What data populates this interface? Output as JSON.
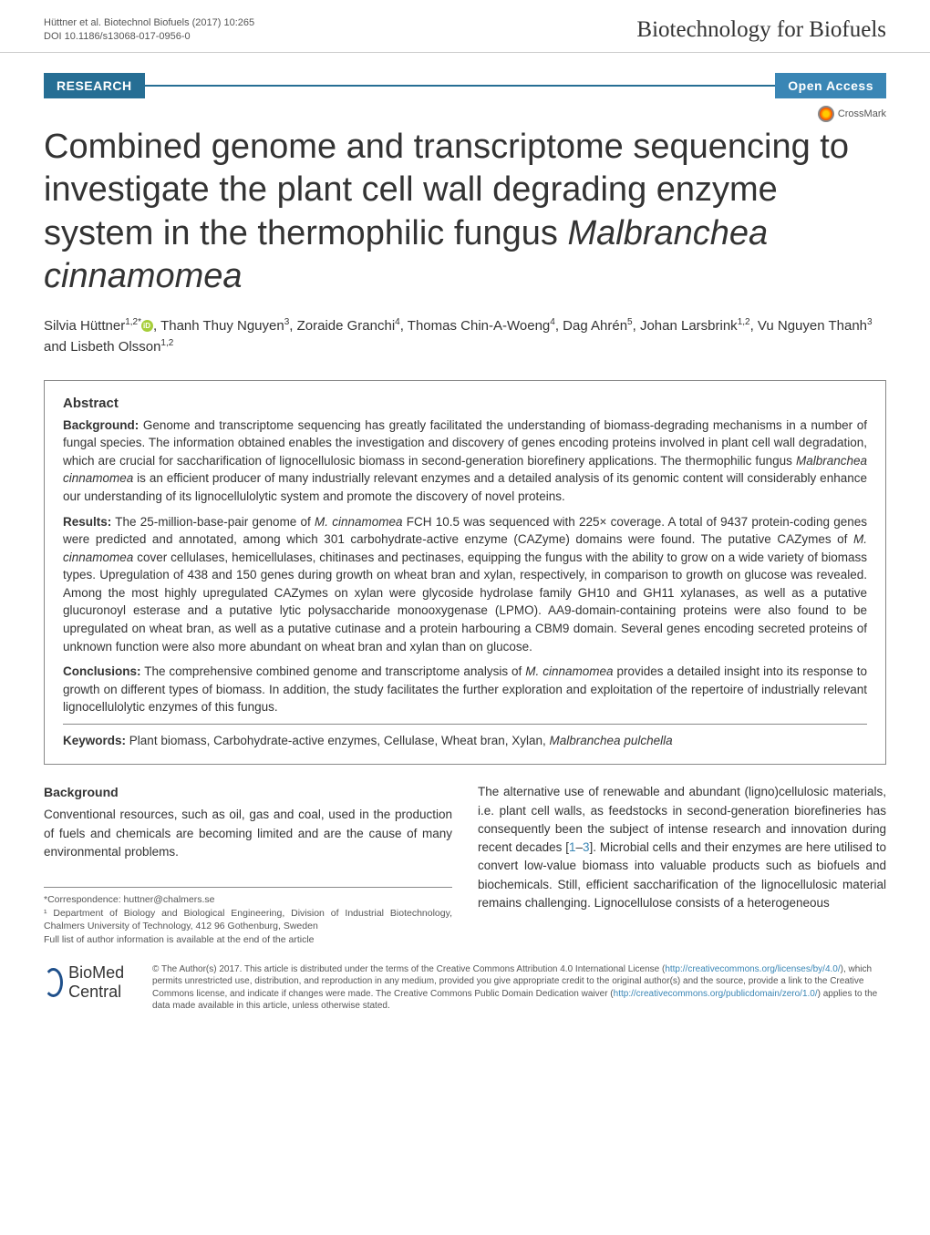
{
  "header": {
    "citation": "Hüttner et al. Biotechnol Biofuels  (2017) 10:265",
    "doi": "DOI 10.1186/s13068-017-0956-0",
    "journal": "Biotechnology for Biofuels"
  },
  "badges": {
    "research": "RESEARCH",
    "open_access": "Open Access",
    "crossmark": "CrossMark"
  },
  "title": "Combined genome and transcriptome sequencing to investigate the plant cell wall degrading enzyme system in the thermophilic fungus Malbranchea cinnamomea",
  "authors_html": "Silvia Hüttner<sup>1,2*</sup><span class='orcid'></span>, Thanh Thuy Nguyen<sup>3</sup>, Zoraide Granchi<sup>4</sup>, Thomas Chin-A-Woeng<sup>4</sup>, Dag Ahrén<sup>5</sup>, Johan Larsbrink<sup>1,2</sup>, Vu Nguyen Thanh<sup>3</sup> and Lisbeth Olsson<sup>1,2</sup>",
  "abstract": {
    "heading": "Abstract",
    "background_label": "Background:",
    "background": "Genome and transcriptome sequencing has greatly facilitated the understanding of biomass-degrading mechanisms in a number of fungal species. The information obtained enables the investigation and discovery of genes encoding proteins involved in plant cell wall degradation, which are crucial for saccharification of lignocellulosic biomass in second-generation biorefinery applications. The thermophilic fungus Malbranchea cinnamomea is an efficient producer of many industrially relevant enzymes and a detailed analysis of its genomic content will considerably enhance our understanding of its lignocellulolytic system and promote the discovery of novel proteins.",
    "results_label": "Results:",
    "results": "The 25-million-base-pair genome of M. cinnamomea FCH 10.5 was sequenced with 225× coverage. A total of 9437 protein-coding genes were predicted and annotated, among which 301 carbohydrate-active enzyme (CAZyme) domains were found. The putative CAZymes of M. cinnamomea cover cellulases, hemicellulases, chitinases and pectinases, equipping the fungus with the ability to grow on a wide variety of biomass types. Upregulation of 438 and 150 genes during growth on wheat bran and xylan, respectively, in comparison to growth on glucose was revealed. Among the most highly upregulated CAZymes on xylan were glycoside hydrolase family GH10 and GH11 xylanases, as well as a putative glucuronoyl esterase and a putative lytic polysaccharide monooxygenase (LPMO). AA9-domain-containing proteins were also found to be upregulated on wheat bran, as well as a putative cutinase and a protein harbouring a CBM9 domain. Several genes encoding secreted proteins of unknown function were also more abundant on wheat bran and xylan than on glucose.",
    "conclusions_label": "Conclusions:",
    "conclusions": "The comprehensive combined genome and transcriptome analysis of M. cinnamomea provides a detailed insight into its response to growth on different types of biomass. In addition, the study facilitates the further exploration and exploitation of the repertoire of industrially relevant lignocellulolytic enzymes of this fungus.",
    "keywords_label": "Keywords:",
    "keywords": "Plant biomass, Carbohydrate-active enzymes, Cellulase, Wheat bran, Xylan, Malbranchea pulchella"
  },
  "body": {
    "background_heading": "Background",
    "col1_p1": "Conventional resources, such as oil, gas and coal, used in the production of fuels and chemicals are becoming limited and are the cause of many environmental problems.",
    "col2_p1": "The alternative use of renewable and abundant (ligno)cellulosic materials, i.e. plant cell walls, as feedstocks in second-generation biorefineries has consequently been the subject of intense research and innovation during recent decades [1–3]. Microbial cells and their enzymes are here utilised to convert low-value biomass into valuable products such as biofuels and biochemicals. Still, efficient saccharification of the lignocellulosic material remains challenging. Lignocellulose consists of a heterogeneous"
  },
  "footnote": {
    "correspondence": "*Correspondence:  huttner@chalmers.se",
    "affiliation": "¹ Department of Biology and Biological Engineering, Division of Industrial Biotechnology, Chalmers University of Technology, 412 96 Gothenburg, Sweden",
    "full_list": "Full list of author information is available at the end of the article"
  },
  "footer": {
    "logo_bold": "BioMed",
    "logo_light": " Central",
    "license": "© The Author(s) 2017. This article is distributed under the terms of the Creative Commons Attribution 4.0 International License (http://creativecommons.org/licenses/by/4.0/), which permits unrestricted use, distribution, and reproduction in any medium, provided you give appropriate credit to the original author(s) and the source, provide a link to the Creative Commons license, and indicate if changes were made. The Creative Commons Public Domain Dedication waiver (http://creativecommons.org/publicdomain/zero/1.0/) applies to the data made available in this article, unless otherwise stated."
  },
  "colors": {
    "badge_research_bg": "#266e94",
    "badge_openaccess_bg": "#3a86b5",
    "link_color": "#3a86b5",
    "text_color": "#333333",
    "border_color": "#888888"
  }
}
